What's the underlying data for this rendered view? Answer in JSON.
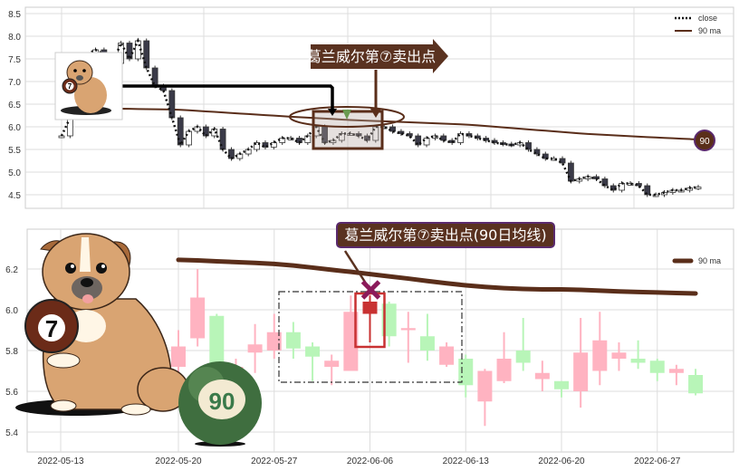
{
  "colors": {
    "up": "#ffb3c1",
    "down": "#b8f5b8",
    "ma": "#5a2e1a",
    "highlight": "#c83232",
    "marker": "#8b1a5a",
    "label_bg": "#5a3220",
    "label_border": "#5b2a6e"
  },
  "chart_data": [
    {
      "type": "candlestick",
      "panel": "top",
      "ylim": [
        4.3,
        8.65
      ],
      "yticks": [
        "4.5",
        "5.0",
        "5.5",
        "6.0",
        "6.5",
        "7.0",
        "7.5",
        "8.0",
        "8.5"
      ],
      "grid": true,
      "legend": {
        "placement": "top-right",
        "entries": [
          {
            "label": "close",
            "style": "dotted"
          },
          {
            "label": "90 ma",
            "style": "line"
          }
        ]
      },
      "close": [
        5.8,
        6.2,
        7.0,
        7.6,
        7.7,
        7.6,
        7.4,
        7.85,
        7.5,
        7.9,
        7.3,
        6.9,
        6.8,
        6.2,
        5.6,
        5.9,
        6.0,
        5.8,
        5.95,
        5.5,
        5.3,
        5.4,
        5.5,
        5.65,
        5.55,
        5.65,
        5.75,
        5.75,
        5.65,
        5.8,
        6.0,
        5.65,
        5.7,
        5.85,
        5.85,
        5.8,
        5.7,
        6.0,
        6.0,
        5.9,
        5.85,
        5.8,
        5.6,
        5.75,
        5.8,
        5.7,
        5.65,
        5.85,
        5.8,
        5.75,
        5.7,
        5.65,
        5.62,
        5.6,
        5.65,
        5.5,
        5.4,
        5.3,
        5.3,
        5.2,
        4.8,
        4.85,
        4.9,
        4.85,
        4.7,
        4.6,
        4.75,
        4.75,
        4.7,
        4.5,
        4.5,
        4.55,
        4.6,
        4.6,
        4.65,
        4.67
      ],
      "ma90": [
        6.35,
        6.4,
        6.38,
        6.3,
        6.22,
        6.15,
        6.1,
        6.05,
        5.95,
        5.85,
        5.78,
        5.72
      ],
      "end_badge": "90",
      "annotation": "葛兰威尔第⑦卖出点"
    },
    {
      "type": "candlestick",
      "panel": "bottom",
      "ylim": [
        5.3,
        6.32
      ],
      "yticks": [
        "5.4",
        "5.6",
        "5.8",
        "6.0",
        "6.2"
      ],
      "xticks": [
        "2022-05-13",
        "2022-05-20",
        "2022-05-27",
        "2022-06-06",
        "2022-06-13",
        "2022-06-20",
        "2022-06-27"
      ],
      "grid": true,
      "legend": {
        "placement": "top-right",
        "entries": [
          {
            "label": "90 ma",
            "style": "thick-line"
          }
        ]
      },
      "dates": [
        "2022-05-20",
        "2022-05-23",
        "2022-05-24",
        "2022-05-25",
        "2022-05-26",
        "2022-05-27",
        "2022-05-30",
        "2022-05-31",
        "2022-06-01",
        "2022-06-02",
        "2022-06-06",
        "2022-06-07",
        "2022-06-08",
        "2022-06-09",
        "2022-06-10",
        "2022-06-13",
        "2022-06-14",
        "2022-06-15",
        "2022-06-16",
        "2022-06-17",
        "2022-06-20",
        "2022-06-21",
        "2022-06-22",
        "2022-06-23",
        "2022-06-24",
        "2022-06-27",
        "2022-06-28",
        "2022-06-29"
      ],
      "open": [
        5.72,
        5.86,
        5.97,
        5.7,
        5.79,
        5.8,
        5.89,
        5.82,
        5.72,
        5.7,
        6.04,
        6.03,
        5.9,
        5.87,
        5.73,
        5.76,
        5.55,
        5.65,
        5.8,
        5.66,
        5.65,
        5.6,
        5.7,
        5.76,
        5.76,
        5.75,
        5.69,
        5.68
      ],
      "close": [
        5.82,
        6.06,
        5.62,
        5.72,
        5.83,
        5.89,
        5.81,
        5.77,
        5.75,
        5.99,
        5.98,
        5.87,
        5.91,
        5.8,
        5.82,
        5.63,
        5.7,
        5.76,
        5.74,
        5.69,
        5.61,
        5.79,
        5.85,
        5.79,
        5.74,
        5.69,
        5.71,
        5.59
      ],
      "high": [
        5.9,
        6.2,
        5.98,
        5.76,
        5.93,
        5.98,
        5.94,
        5.84,
        5.78,
        6.07,
        6.07,
        6.04,
        5.99,
        5.98,
        5.84,
        5.78,
        5.71,
        5.89,
        5.96,
        5.75,
        5.65,
        5.96,
        5.99,
        5.84,
        5.85,
        5.76,
        5.73,
        5.71
      ],
      "low": [
        5.68,
        5.82,
        5.6,
        5.68,
        5.69,
        5.76,
        5.76,
        5.65,
        5.63,
        5.7,
        5.84,
        5.82,
        5.74,
        5.75,
        5.72,
        5.57,
        5.43,
        5.64,
        5.7,
        5.6,
        5.57,
        5.52,
        5.63,
        5.7,
        5.71,
        5.65,
        5.63,
        5.58
      ],
      "highlight_date": "2022-06-06",
      "ma90": [
        6.245,
        6.242,
        6.238,
        6.234,
        6.23,
        6.225,
        6.217,
        6.207,
        6.196,
        6.186,
        6.175,
        6.164,
        6.153,
        6.141,
        6.13,
        6.12,
        6.112,
        6.106,
        6.102,
        6.1,
        6.1,
        6.098,
        6.094,
        6.09,
        6.087,
        6.085,
        6.082,
        6.08
      ],
      "annotation": "葛兰威尔第⑦卖出点(90日均线)",
      "ball_label": "90",
      "dog_ball_label": "7"
    }
  ]
}
